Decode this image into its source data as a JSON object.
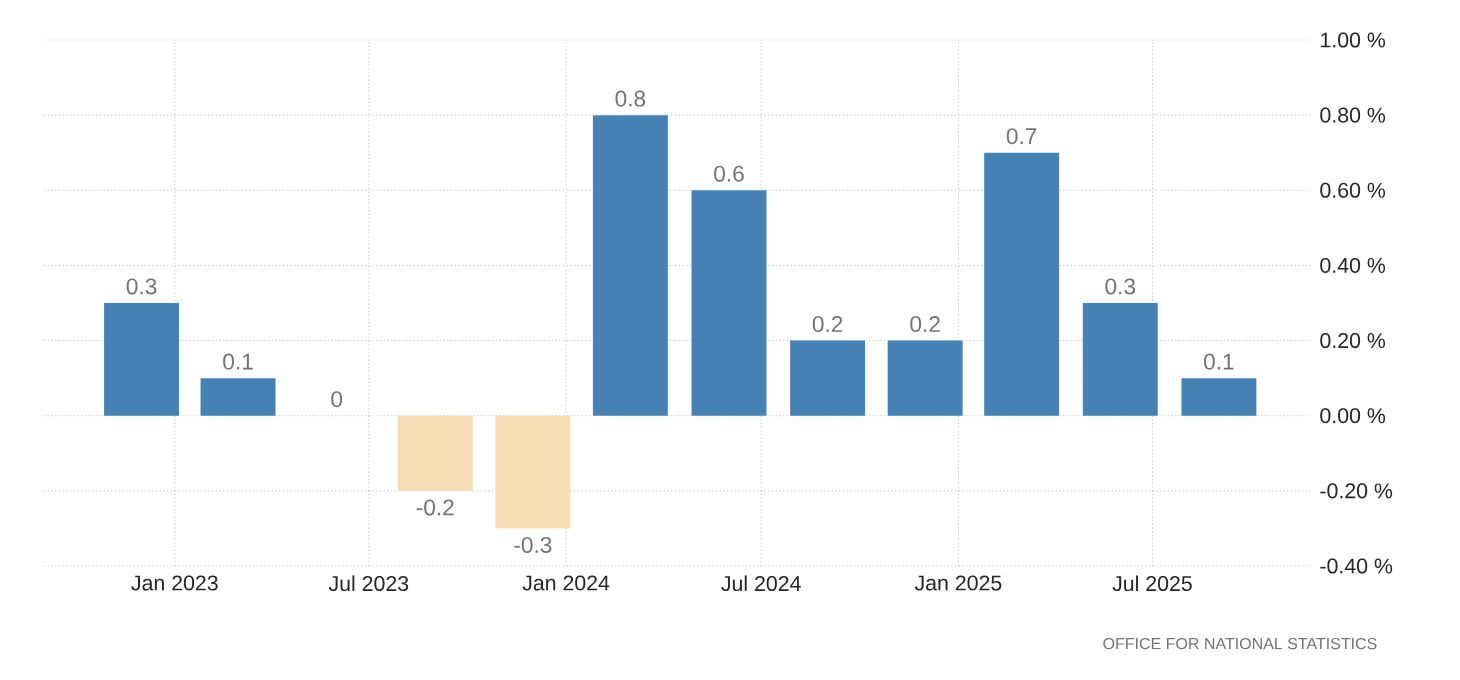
{
  "chart_data": {
    "type": "bar",
    "x": [
      "2022-12",
      "2023-03",
      "2023-06",
      "2023-09",
      "2023-12",
      "2024-03",
      "2024-06",
      "2024-09",
      "2024-12",
      "2025-03",
      "2025-06",
      "2025-09"
    ],
    "values": [
      0.3,
      0.1,
      0,
      -0.2,
      -0.3,
      0.8,
      0.6,
      0.2,
      0.2,
      0.7,
      0.3,
      0.1
    ],
    "value_labels": [
      "0.3",
      "0.1",
      "0",
      "-0.2",
      "-0.3",
      "0.8",
      "0.6",
      "0.2",
      "0.2",
      "0.7",
      "0.3",
      "0.1"
    ],
    "colors": [
      "#4682b4",
      "#4682b4",
      "#4682b4",
      "#f5deb3",
      "#f5deb3",
      "#4682b4",
      "#4682b4",
      "#4682b4",
      "#4682b4",
      "#4682b4",
      "#4682b4",
      "#4682b4"
    ],
    "xlim": [
      "2022-09-01",
      "2025-11-25"
    ],
    "xticks": [
      {
        "value": "2023-01",
        "label": "Jan 2023"
      },
      {
        "value": "2023-07",
        "label": "Jul 2023"
      },
      {
        "value": "2024-01",
        "label": "Jan 2024"
      },
      {
        "value": "2024-07",
        "label": "Jul 2024"
      },
      {
        "value": "2025-01",
        "label": "Jan 2025"
      },
      {
        "value": "2025-07",
        "label": "Jul 2025"
      }
    ],
    "ylim": [
      -0.4,
      1.0
    ],
    "yticks": [
      {
        "value": -0.4,
        "label": "-0.40 %"
      },
      {
        "value": -0.2,
        "label": "-0.20 %"
      },
      {
        "value": 0,
        "label": "0.00 %"
      },
      {
        "value": 0.2,
        "label": "0.20 %"
      },
      {
        "value": 0.4,
        "label": "0.40 %"
      },
      {
        "value": 0.6,
        "label": "0.60 %"
      },
      {
        "value": 0.8,
        "label": "0.80 %"
      },
      {
        "value": 1.0,
        "label": "1.00 %"
      }
    ],
    "grid": true,
    "annotations": [
      "OFFICE FOR NATIONAL STATISTICS"
    ]
  }
}
